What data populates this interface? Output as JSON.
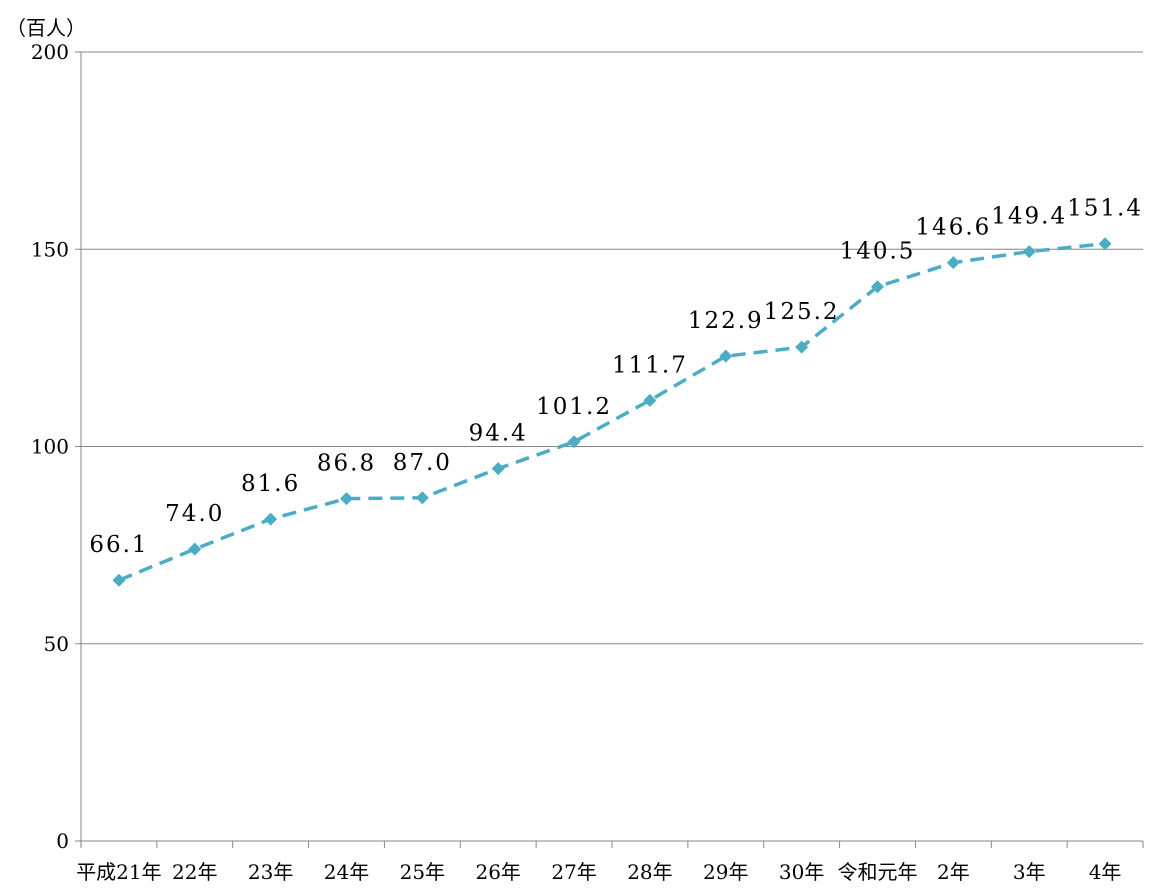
{
  "chart_data": {
    "type": "line",
    "unit_label": "（百人）",
    "categories": [
      "平成21年",
      "22年",
      "23年",
      "24年",
      "25年",
      "26年",
      "27年",
      "28年",
      "29年",
      "30年",
      "令和元年",
      "2年",
      "3年",
      "4年"
    ],
    "series": [
      {
        "values": [
          66.1,
          74.0,
          81.6,
          86.8,
          87.0,
          94.4,
          101.2,
          111.7,
          122.9,
          125.2,
          140.5,
          146.6,
          149.4,
          151.4
        ],
        "data_labels": [
          "66.1",
          "74.0",
          "81.6",
          "86.8",
          "87.0",
          "94.4",
          "101.2",
          "111.7",
          "122.9",
          "125.2",
          "140.5",
          "146.6",
          "149.4",
          "151.4"
        ],
        "color": "#4bacc6",
        "line_style": "dashed",
        "marker": "diamond"
      }
    ],
    "yticks": [
      "0",
      "50",
      "100",
      "150",
      "200"
    ],
    "ylim": [
      0,
      200
    ],
    "grid": "horizontal",
    "legend": "none",
    "colors": {
      "series": "#4bacc6",
      "grid": "#868686",
      "axis": "#868686"
    }
  }
}
